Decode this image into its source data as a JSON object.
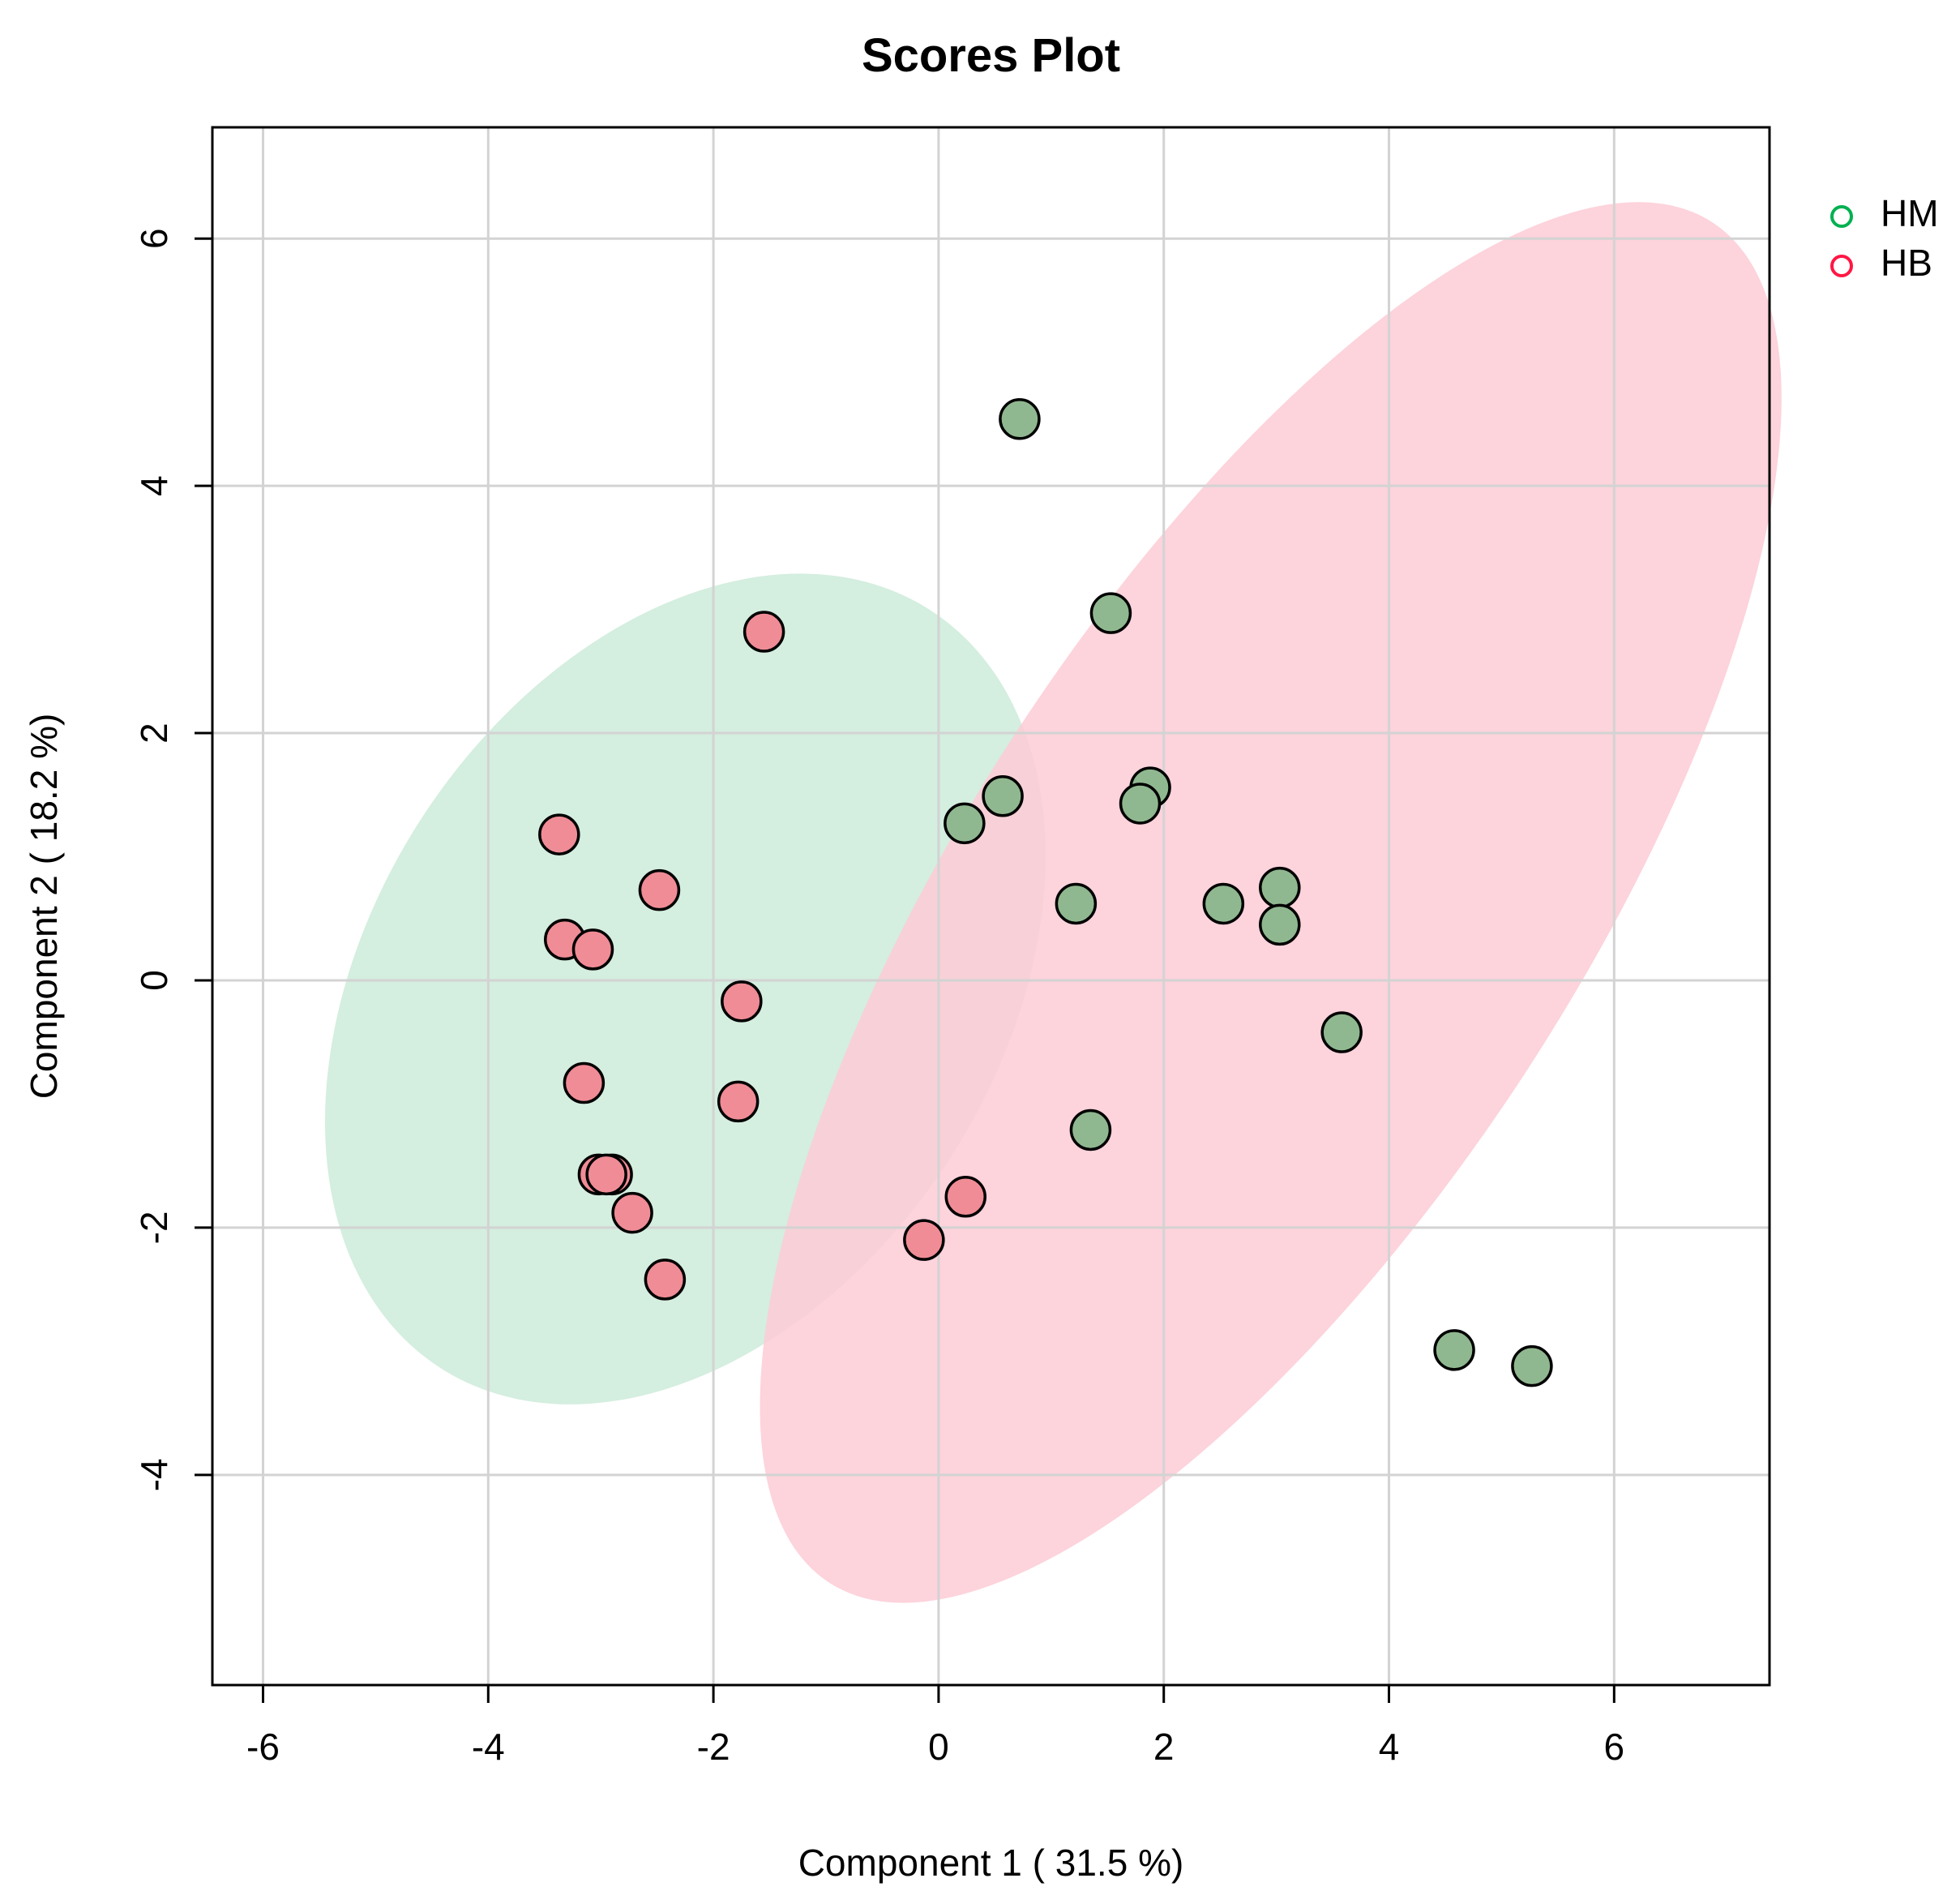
{
  "chart_data": {
    "type": "scatter",
    "title": "Scores Plot",
    "xlabel": "Component 1 ( 31.5 %)",
    "ylabel": "Component 2 ( 18.2 %)",
    "xlim": [
      -6.45,
      7.38
    ],
    "ylim": [
      -5.7,
      6.9
    ],
    "xticks": [
      -6,
      -4,
      -2,
      0,
      2,
      4,
      6
    ],
    "yticks": [
      -4,
      -2,
      0,
      2,
      4,
      6
    ],
    "xtick_labels": [
      "-6",
      "-4",
      "-2",
      "0",
      "2",
      "4",
      "6"
    ],
    "ytick_labels": [
      "-4",
      "-2",
      "0",
      "2",
      "4",
      "6"
    ],
    "grid": true,
    "legend_position": "top-right, outside plot",
    "series": [
      {
        "name": "HM",
        "legend_color": "#00b050",
        "point_fill": "#90b890",
        "ellipse_fill": "#cdebd9",
        "ellipse": {
          "center": [
            -2.25,
            -0.07
          ],
          "semi_axis_1": 2.79,
          "semi_axis_2": 3.65,
          "angle_deg": 33
        },
        "points": [
          [
            0.72,
            4.54
          ],
          [
            1.53,
            2.97
          ],
          [
            1.88,
            1.56
          ],
          [
            1.79,
            1.43
          ],
          [
            0.57,
            1.49
          ],
          [
            0.23,
            1.27
          ],
          [
            1.22,
            0.62
          ],
          [
            2.53,
            0.62
          ],
          [
            3.03,
            0.75
          ],
          [
            3.03,
            0.45
          ],
          [
            3.58,
            -0.42
          ],
          [
            1.35,
            -1.21
          ],
          [
            4.58,
            -2.99
          ],
          [
            5.27,
            -3.12
          ]
        ]
      },
      {
        "name": "HB",
        "legend_color": "#ff1744",
        "point_fill": "#f08c96",
        "ellipse_fill": "#fdcbd6",
        "ellipse": {
          "center": [
            2.95,
            0.63
          ],
          "semi_axis_1": 2.72,
          "semi_axis_2": 6.56,
          "angle_deg": 33
        },
        "points": [
          [
            -1.55,
            2.82
          ],
          [
            -3.37,
            1.18
          ],
          [
            -2.48,
            0.73
          ],
          [
            -3.32,
            0.33
          ],
          [
            -3.07,
            0.25
          ],
          [
            -1.75,
            -0.17
          ],
          [
            -3.15,
            -0.83
          ],
          [
            -1.78,
            -0.98
          ],
          [
            -3.02,
            -1.57
          ],
          [
            -2.9,
            -1.57
          ],
          [
            -2.95,
            -1.57
          ],
          [
            -2.72,
            -1.88
          ],
          [
            -2.43,
            -2.42
          ],
          [
            0.24,
            -1.75
          ],
          [
            -0.13,
            -2.1
          ]
        ]
      }
    ]
  }
}
